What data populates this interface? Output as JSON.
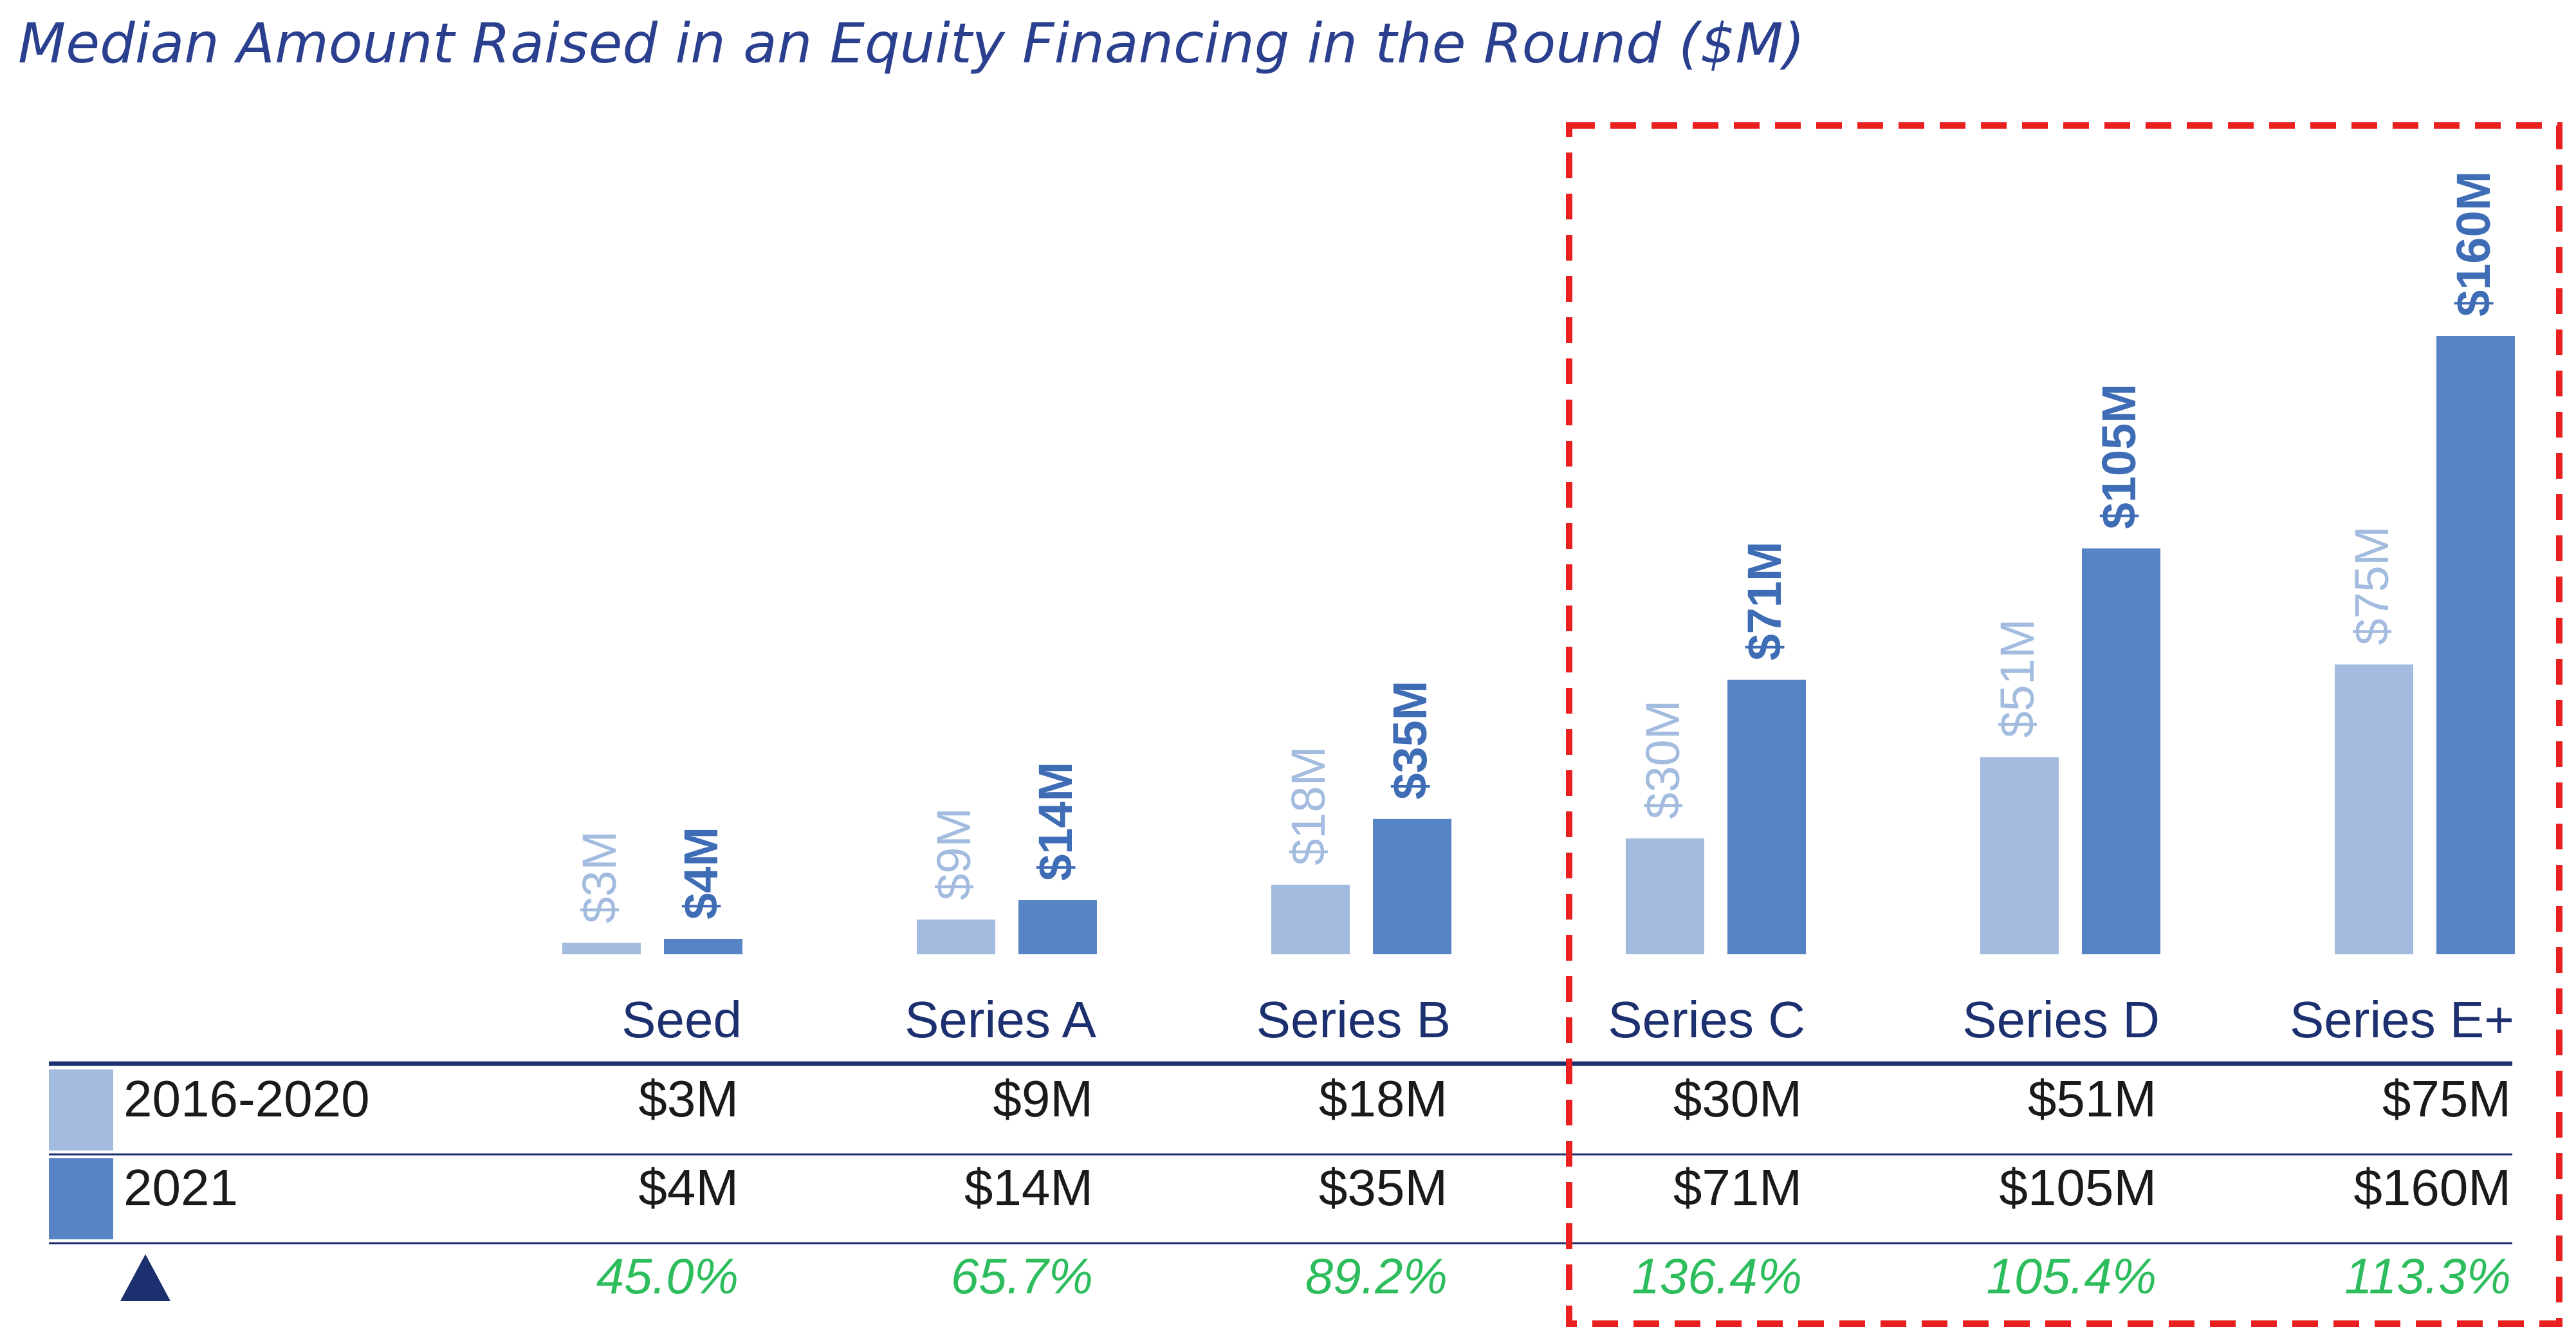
{
  "title": "Median Amount Raised in an Equity Financing in the Round ($M)",
  "colors": {
    "series_light": "#a2bbdf",
    "series_dark": "#5684c5",
    "label_light": "#a2bbdf",
    "label_dark": "#3f6db5",
    "category_text": "#1c2f6e",
    "table_text": "#1a1a1a",
    "growth_text": "#2ebd5d",
    "rule": "#1c2f6e",
    "highlight_box": "#e8201f",
    "triangle": "#1c2f6e"
  },
  "chart_data": {
    "type": "bar",
    "categories": [
      "Seed",
      "Series A",
      "Series B",
      "Series C",
      "Series D",
      "Series E+"
    ],
    "series": [
      {
        "name": "2016-2020",
        "values": [
          3,
          9,
          18,
          30,
          51,
          75
        ],
        "labels": [
          "$3M",
          "$9M",
          "$18M",
          "$30M",
          "$51M",
          "$75M"
        ]
      },
      {
        "name": "2021",
        "values": [
          4,
          14,
          35,
          71,
          105,
          160
        ],
        "labels": [
          "$4M",
          "$14M",
          "$35M",
          "$71M",
          "$105M",
          "$160M"
        ]
      }
    ],
    "ylim": [
      0,
      160
    ],
    "growth": [
      "45.0%",
      "65.7%",
      "89.2%",
      "136.4%",
      "105.4%",
      "113.3%"
    ],
    "growth_icon": "triangle-up-icon",
    "highlight_categories": [
      "Series C",
      "Series D",
      "Series E+"
    ],
    "grid": false
  }
}
